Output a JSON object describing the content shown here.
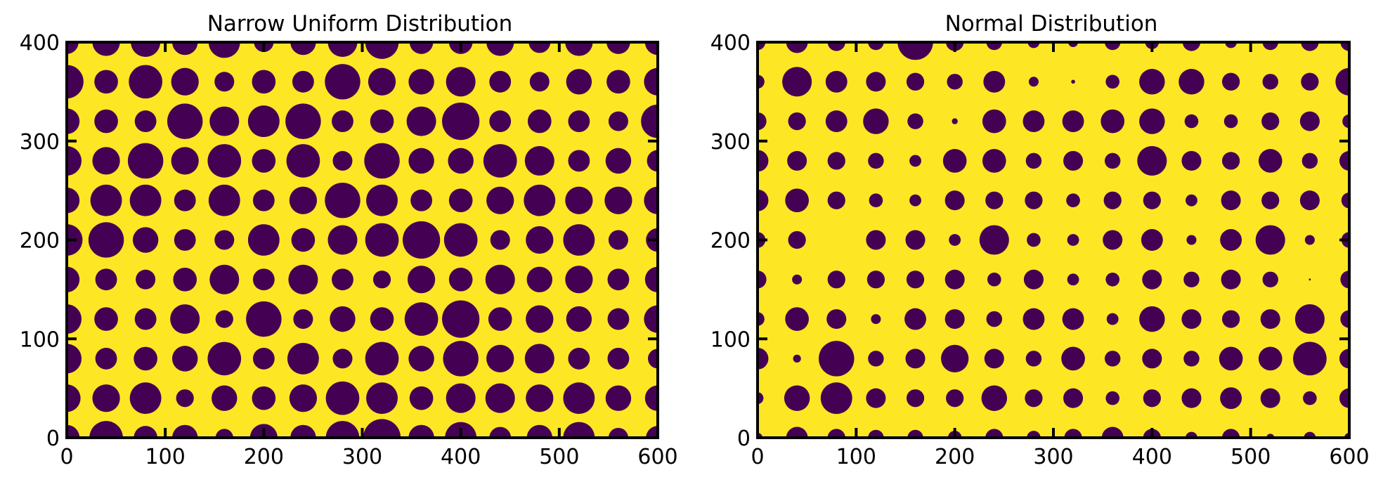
{
  "colors": {
    "background": "#fde725",
    "blob": "#440154",
    "axis": "#000000"
  },
  "chart_data": [
    {
      "type": "heatmap",
      "title": "Narrow Uniform Distribution",
      "xlim": [
        0,
        600
      ],
      "ylim": [
        0,
        400
      ],
      "xticks": [
        0,
        100,
        200,
        300,
        400,
        500,
        600
      ],
      "yticks": [
        0,
        100,
        200,
        300,
        400
      ],
      "xtick_labels": [
        "0",
        "100",
        "200",
        "300",
        "400",
        "500",
        "600"
      ],
      "ytick_labels": [
        "0",
        "100",
        "200",
        "300",
        "400"
      ],
      "grid_x": [
        0,
        40,
        80,
        120,
        160,
        200,
        240,
        280,
        320,
        360,
        400,
        440,
        480,
        520,
        560,
        600
      ],
      "grid_y": [
        0,
        40,
        80,
        120,
        160,
        200,
        240,
        280,
        320,
        360,
        400
      ],
      "radius_rows": [
        [
          13,
          17,
          12,
          13,
          9,
          14,
          13,
          17,
          19,
          13,
          16,
          11,
          13,
          16,
          10,
          12
        ],
        [
          14,
          14,
          16,
          9,
          13,
          12,
          14,
          17,
          16,
          12,
          15,
          15,
          14,
          16,
          13,
          13
        ],
        [
          15,
          11,
          12,
          13,
          17,
          11,
          16,
          10,
          17,
          13,
          18,
          14,
          15,
          11,
          11,
          10
        ],
        [
          15,
          12,
          11,
          15,
          9,
          18,
          10,
          13,
          12,
          17,
          19,
          12,
          14,
          13,
          11,
          14
        ],
        [
          13,
          11,
          10,
          12,
          15,
          11,
          15,
          11,
          9,
          14,
          12,
          15,
          13,
          14,
          11,
          13
        ],
        [
          16,
          18,
          13,
          11,
          10,
          16,
          12,
          15,
          17,
          19,
          17,
          10,
          14,
          16,
          10,
          12
        ],
        [
          13,
          16,
          16,
          11,
          16,
          11,
          14,
          18,
          16,
          11,
          12,
          14,
          16,
          14,
          14,
          14
        ],
        [
          15,
          14,
          18,
          14,
          17,
          12,
          17,
          10,
          18,
          13,
          13,
          17,
          15,
          11,
          13,
          11
        ],
        [
          13,
          12,
          11,
          18,
          15,
          16,
          18,
          11,
          12,
          15,
          19,
          11,
          12,
          11,
          10,
          17
        ],
        [
          17,
          12,
          17,
          14,
          10,
          12,
          11,
          18,
          14,
          13,
          15,
          11,
          10,
          13,
          12,
          14
        ],
        [
          12,
          14,
          15,
          13,
          16,
          10,
          13,
          15,
          17,
          12,
          12,
          14,
          11,
          14,
          12,
          13
        ]
      ]
    },
    {
      "type": "heatmap",
      "title": "Normal Distribution",
      "xlim": [
        0,
        600
      ],
      "ylim": [
        0,
        400
      ],
      "xticks": [
        0,
        100,
        200,
        300,
        400,
        500,
        600
      ],
      "yticks": [
        0,
        100,
        200,
        300,
        400
      ],
      "xtick_labels": [
        "0",
        "100",
        "200",
        "300",
        "400",
        "500",
        "600"
      ],
      "ytick_labels": [
        "0",
        "100",
        "200",
        "300",
        "400"
      ],
      "grid_x": [
        0,
        40,
        80,
        120,
        160,
        200,
        240,
        280,
        320,
        360,
        400,
        440,
        480,
        520,
        560,
        600
      ],
      "grid_y": [
        0,
        40,
        80,
        120,
        160,
        200,
        240,
        280,
        320,
        360,
        400
      ],
      "radius_rows": [
        [
          5,
          11,
          9,
          8,
          8,
          7,
          9,
          7,
          9,
          11,
          9,
          6,
          9,
          4,
          6,
          5
        ],
        [
          6,
          13,
          16,
          10,
          9,
          9,
          13,
          9,
          10,
          7,
          9,
          10,
          11,
          10,
          7,
          10
        ],
        [
          11,
          4,
          18,
          8,
          10,
          14,
          10,
          8,
          12,
          8,
          10,
          8,
          12,
          12,
          17,
          10
        ],
        [
          7,
          12,
          10,
          5,
          11,
          10,
          8,
          11,
          11,
          6,
          13,
          10,
          9,
          10,
          15,
          9
        ],
        [
          9,
          5,
          9,
          9,
          9,
          10,
          7,
          10,
          6,
          7,
          10,
          8,
          10,
          8,
          1,
          9
        ],
        [
          8,
          9,
          0,
          10,
          10,
          6,
          15,
          7,
          6,
          10,
          11,
          5,
          11,
          15,
          5,
          8
        ],
        [
          11,
          12,
          9,
          7,
          6,
          10,
          9,
          9,
          7,
          9,
          9,
          6,
          10,
          9,
          10,
          8
        ],
        [
          11,
          10,
          9,
          8,
          6,
          12,
          12,
          8,
          10,
          8,
          15,
          10,
          9,
          12,
          8,
          10
        ],
        [
          9,
          9,
          11,
          13,
          8,
          3,
          12,
          11,
          11,
          12,
          13,
          7,
          7,
          9,
          10,
          7
        ],
        [
          7,
          15,
          11,
          10,
          9,
          8,
          11,
          5,
          2,
          7,
          13,
          13,
          9,
          8,
          9,
          14
        ],
        [
          8,
          11,
          9,
          8,
          18,
          9,
          8,
          6,
          5,
          8,
          7,
          9,
          6,
          8,
          9,
          9
        ]
      ]
    }
  ]
}
